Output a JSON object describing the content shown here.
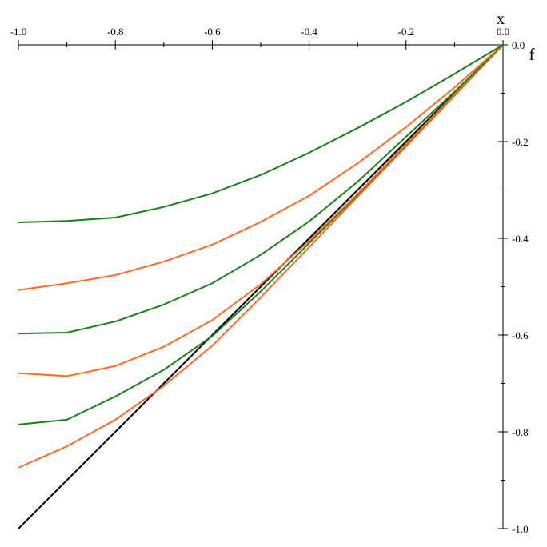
{
  "chart_data": {
    "type": "line",
    "xlabel": "x",
    "ylabel": "f",
    "x": [
      -1.0,
      -0.9,
      -0.8,
      -0.7,
      -0.6,
      -0.5,
      -0.4,
      -0.3,
      -0.2,
      -0.1,
      0.0
    ],
    "series": [
      {
        "color": "#000000",
        "values": [
          -1.0,
          -0.9,
          -0.8,
          -0.7,
          -0.6,
          -0.5,
          -0.4,
          -0.3,
          -0.2,
          -0.1,
          0.0
        ]
      },
      {
        "color": "#ff6a26",
        "values": [
          -0.874,
          -0.83,
          -0.775,
          -0.705,
          -0.622,
          -0.522,
          -0.418,
          -0.314,
          -0.21,
          -0.105,
          0.0
        ]
      },
      {
        "color": "#1a7f1a",
        "values": [
          -0.785,
          -0.775,
          -0.727,
          -0.672,
          -0.602,
          -0.51,
          -0.41,
          -0.31,
          -0.206,
          -0.103,
          0.0
        ]
      },
      {
        "color": "#ff6a26",
        "values": [
          -0.679,
          -0.685,
          -0.664,
          -0.624,
          -0.569,
          -0.495,
          -0.405,
          -0.308,
          -0.205,
          -0.102,
          0.0
        ]
      },
      {
        "color": "#1a7f1a",
        "values": [
          -0.597,
          -0.595,
          -0.572,
          -0.537,
          -0.493,
          -0.434,
          -0.365,
          -0.283,
          -0.19,
          -0.097,
          0.0
        ]
      },
      {
        "color": "#ff6a26",
        "values": [
          -0.507,
          -0.493,
          -0.476,
          -0.448,
          -0.413,
          -0.366,
          -0.312,
          -0.245,
          -0.17,
          -0.088,
          0.0
        ]
      },
      {
        "color": "#1a7f1a",
        "values": [
          -0.367,
          -0.364,
          -0.357,
          -0.335,
          -0.307,
          -0.269,
          -0.223,
          -0.172,
          -0.118,
          -0.06,
          0.0
        ]
      }
    ],
    "xlim": [
      -1.0,
      0.0
    ],
    "ylim": [
      -1.0,
      0.0
    ],
    "xticks": [
      {
        "value": -1.0,
        "label": "-1.0"
      },
      {
        "value": -0.8,
        "label": "-0.8"
      },
      {
        "value": -0.6,
        "label": "-0.6"
      },
      {
        "value": -0.4,
        "label": "-0.4"
      },
      {
        "value": -0.2,
        "label": "-0.2"
      },
      {
        "value": 0.0,
        "label": "0.0"
      }
    ],
    "xminorticks": [
      -0.9,
      -0.7,
      -0.5,
      -0.3,
      -0.1
    ],
    "yticks": [
      {
        "value": 0.0,
        "label": "0.0"
      },
      {
        "value": -0.2,
        "label": "-0.2"
      },
      {
        "value": -0.4,
        "label": "-0.4"
      },
      {
        "value": -0.6,
        "label": "-0.6"
      },
      {
        "value": -0.8,
        "label": "-0.8"
      },
      {
        "value": -1.0,
        "label": "-1.0"
      }
    ],
    "yminorticks": [
      -0.1,
      -0.3,
      -0.5,
      -0.7,
      -0.9
    ],
    "grid": false
  }
}
